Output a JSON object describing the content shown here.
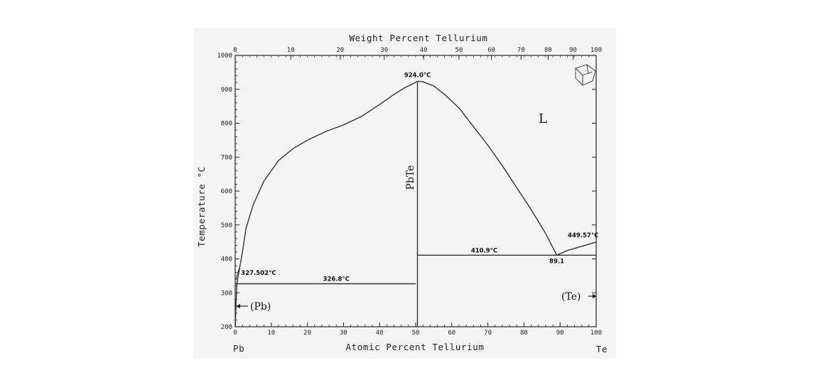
{
  "chart_data": {
    "type": "line",
    "title": "",
    "top_axis_label": "Weight Percent Tellurium",
    "xlabel": "Atomic Percent Tellurium",
    "ylabel": "Temperature °C",
    "xlim": [
      0,
      100
    ],
    "ylim": [
      200,
      1000
    ],
    "x_ticks": [
      "0",
      "10",
      "20",
      "30",
      "40",
      "50",
      "60",
      "70",
      "80",
      "90",
      "100"
    ],
    "y_ticks": [
      "200",
      "300",
      "400",
      "500",
      "600",
      "700",
      "800",
      "900",
      "1000"
    ],
    "top_ticks": [
      {
        "label": "0",
        "at": 0
      },
      {
        "label": "10",
        "at": 15.4
      },
      {
        "label": "20",
        "at": 29.1
      },
      {
        "label": "30",
        "at": 41.3
      },
      {
        "label": "40",
        "at": 52.2
      },
      {
        "label": "50",
        "at": 62.0
      },
      {
        "label": "60",
        "at": 71.0
      },
      {
        "label": "70",
        "at": 79.2
      },
      {
        "label": "80",
        "at": 86.7
      },
      {
        "label": "90",
        "at": 93.6
      },
      {
        "label": "100",
        "at": 100
      }
    ],
    "end_labels": {
      "left": "Pb",
      "right": "Te"
    },
    "series": [
      {
        "name": "liquidus-pb-side",
        "points": [
          [
            0.45,
            327.5
          ],
          [
            1,
            360
          ],
          [
            2,
            420
          ],
          [
            3,
            490
          ],
          [
            5,
            560
          ],
          [
            8,
            630
          ],
          [
            12,
            690
          ],
          [
            16,
            725
          ],
          [
            20,
            750
          ],
          [
            25,
            775
          ],
          [
            30,
            795
          ],
          [
            35,
            820
          ],
          [
            40,
            855
          ],
          [
            44,
            885
          ],
          [
            47,
            905
          ],
          [
            49,
            915
          ],
          [
            50.5,
            924
          ]
        ]
      },
      {
        "name": "liquidus-te-side",
        "points": [
          [
            50.5,
            924
          ],
          [
            52,
            922
          ],
          [
            55,
            910
          ],
          [
            58,
            885
          ],
          [
            62,
            845
          ],
          [
            66,
            790
          ],
          [
            70,
            735
          ],
          [
            74,
            675
          ],
          [
            78,
            610
          ],
          [
            82,
            545
          ],
          [
            86,
            475
          ],
          [
            89.1,
            410.9
          ]
        ]
      },
      {
        "name": "te-liquidus",
        "points": [
          [
            89.1,
            410.9
          ],
          [
            92,
            425
          ],
          [
            96,
            437
          ],
          [
            100,
            449.57
          ]
        ]
      },
      {
        "name": "pbte-line",
        "points": [
          [
            50.5,
            200
          ],
          [
            50.5,
            924
          ]
        ]
      },
      {
        "name": "eutectic-326",
        "points": [
          [
            0,
            326.8
          ],
          [
            50,
            326.8
          ]
        ]
      },
      {
        "name": "eutectic-410",
        "points": [
          [
            50.5,
            410.9
          ],
          [
            100,
            410.9
          ]
        ]
      },
      {
        "name": "pb-solvus",
        "points": [
          [
            0,
            200
          ],
          [
            0.45,
            327.5
          ]
        ]
      }
    ],
    "annotations": [
      {
        "text": "924.0°C",
        "x": 50.5,
        "y": 924
      },
      {
        "text": "327.502°C",
        "x": 0.45,
        "y": 327.5
      },
      {
        "text": "326.8°C",
        "x": 28,
        "y": 326.8
      },
      {
        "text": "410.9°C",
        "x": 69,
        "y": 410.9
      },
      {
        "text": "449.57°C",
        "x": 96,
        "y": 449.57
      },
      {
        "text": "89.1",
        "x": 89.1,
        "y": 410.9
      }
    ],
    "phase_labels": {
      "liquid": "L",
      "compound": "PbTe",
      "pb": "(Pb)",
      "te": "(Te)"
    }
  }
}
